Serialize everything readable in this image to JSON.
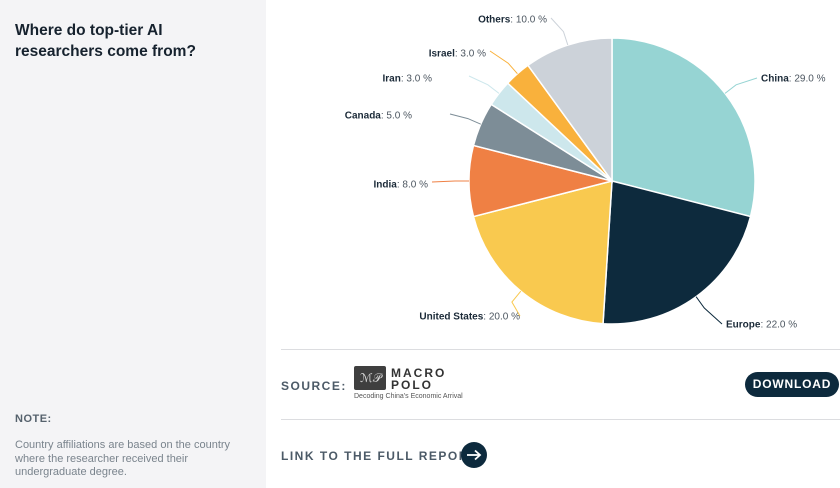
{
  "sidebar": {
    "title": "Where do top-tier AI researchers come from?",
    "note_label": "NOTE:",
    "note_text": "Country affiliations are based on the country where the researcher received their undergraduate degree."
  },
  "chart_data": {
    "type": "pie",
    "title": "",
    "value_suffix": " %",
    "slices": [
      {
        "name": "China",
        "value": 29.0,
        "color": "#96d4d3"
      },
      {
        "name": "Europe",
        "value": 22.0,
        "color": "#0d2a3d"
      },
      {
        "name": "United States",
        "value": 20.0,
        "color": "#f9c94f"
      },
      {
        "name": "India",
        "value": 8.0,
        "color": "#ef8044"
      },
      {
        "name": "Canada",
        "value": 5.0,
        "color": "#7d8d97"
      },
      {
        "name": "Iran",
        "value": 3.0,
        "color": "#cde7ec"
      },
      {
        "name": "Israel",
        "value": 3.0,
        "color": "#f9b13c"
      },
      {
        "name": "Others",
        "value": 10.0,
        "color": "#ccd2d9"
      }
    ]
  },
  "footer": {
    "source_label": "SOURCE:",
    "logo_line1": "MACRO",
    "logo_line2": "POLO",
    "logo_tagline": "Decoding China's Economic Arrival",
    "download_label": "DOWNLOAD",
    "report_link_label": "LINK TO THE FULL REPORT"
  }
}
